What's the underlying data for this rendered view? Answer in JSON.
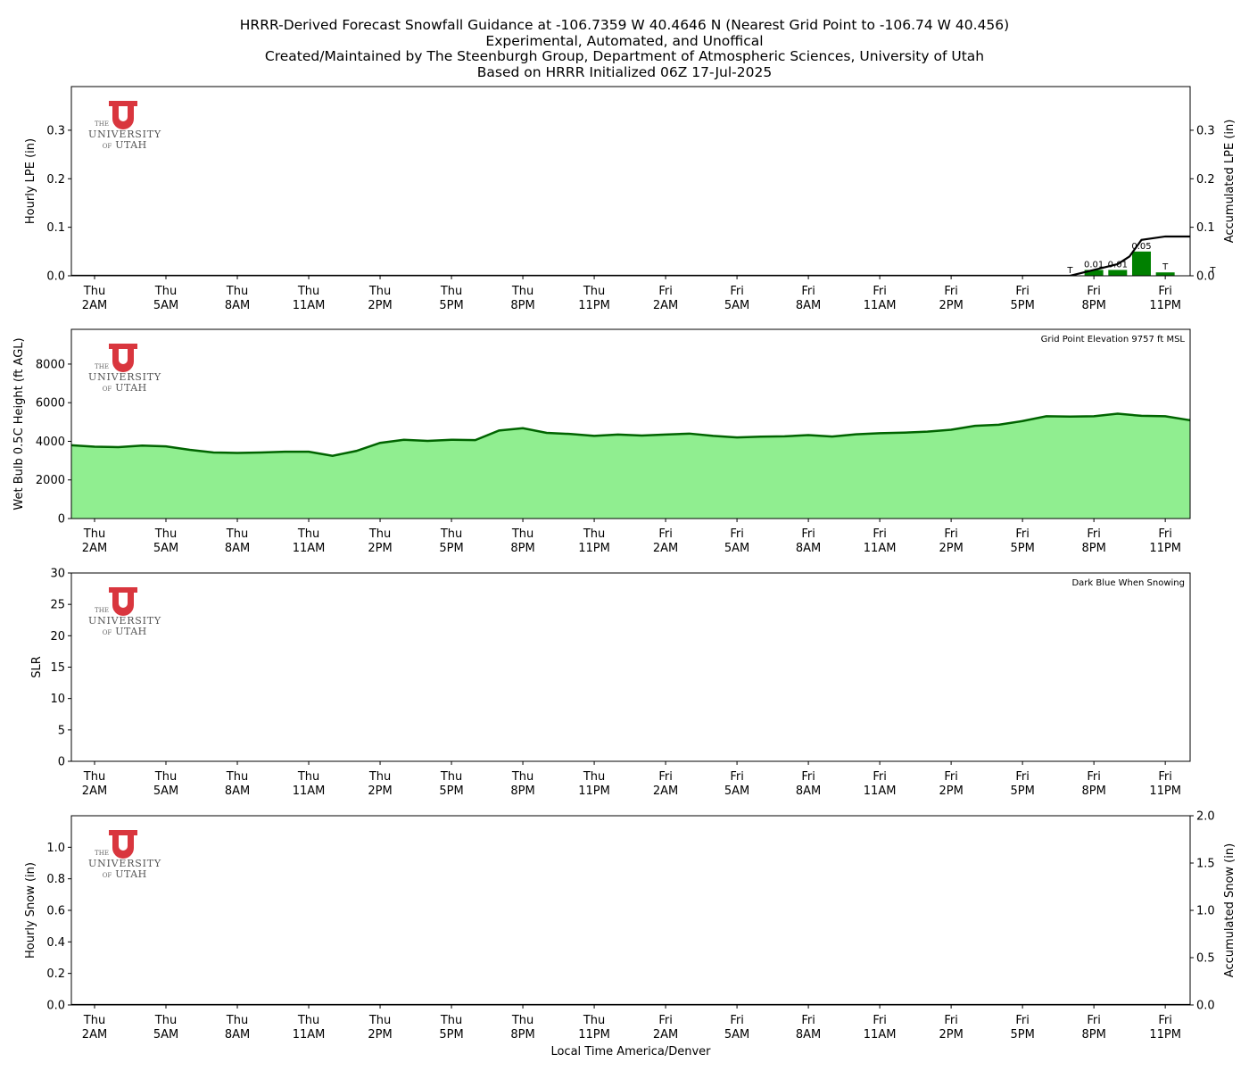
{
  "title": {
    "lines": [
      "HRRR-Derived Forecast Snowfall Guidance at -106.7359 W 40.4646 N (Nearest Grid Point to -106.74 W 40.456)",
      "Experimental, Automated, and Unoffical",
      "Created/Maintained by The Steenburgh Group, Department of Atmospheric Sciences, University of Utah",
      "Based on HRRR Initialized 06Z 17-Jul-2025"
    ]
  },
  "logo": {
    "the": "THE",
    "university": "UNIVERSITY",
    "of": "OF",
    "utah": "UTAH",
    "color": "#d9363e"
  },
  "xlabel": "Local Time America/Denver",
  "x_ticks": [
    [
      "Thu",
      "2AM"
    ],
    [
      "Thu",
      "5AM"
    ],
    [
      "Thu",
      "8AM"
    ],
    [
      "Thu",
      "11AM"
    ],
    [
      "Thu",
      "2PM"
    ],
    [
      "Thu",
      "5PM"
    ],
    [
      "Thu",
      "8PM"
    ],
    [
      "Thu",
      "11PM"
    ],
    [
      "Fri",
      "2AM"
    ],
    [
      "Fri",
      "5AM"
    ],
    [
      "Fri",
      "8AM"
    ],
    [
      "Fri",
      "11AM"
    ],
    [
      "Fri",
      "2PM"
    ],
    [
      "Fri",
      "5PM"
    ],
    [
      "Fri",
      "8PM"
    ],
    [
      "Fri",
      "11PM"
    ]
  ],
  "chart_data": [
    {
      "type": "bar",
      "ylabel": "Hourly LPE (in)",
      "y2label": "Accumulated LPE (in)",
      "ylim": [
        0,
        0.39
      ],
      "y2lim": [
        0,
        0.39
      ],
      "yticks": [
        0.0,
        0.1,
        0.2,
        0.3
      ],
      "y2ticks": [
        0.0,
        0.1,
        0.2,
        0.3
      ],
      "bar_color": "#008000",
      "line_color": "#000000",
      "hourly_bars": [
        {
          "hours_from_start": 41,
          "value": 0.0,
          "label": "T"
        },
        {
          "hours_from_start": 42,
          "value": 0.012,
          "label": "0.01"
        },
        {
          "hours_from_start": 43,
          "value": 0.012,
          "label": "0.01"
        },
        {
          "hours_from_start": 44,
          "value": 0.05,
          "label": "0.05"
        },
        {
          "hours_from_start": 45,
          "value": 0.007,
          "label": "T"
        },
        {
          "hours_from_start": 47,
          "value": 0.0,
          "label": "T"
        }
      ],
      "accumulated": {
        "hours_from_start": [
          -1,
          40,
          41,
          42,
          43,
          43.5,
          44,
          45,
          46,
          47
        ],
        "values": [
          0,
          0,
          0,
          0.012,
          0.024,
          0.04,
          0.074,
          0.081,
          0.081,
          0.082
        ]
      }
    },
    {
      "type": "area",
      "ylabel": "Wet Bulb 0.5C Height (ft AGL)",
      "annotation": "Grid Point Elevation 9757 ft MSL",
      "ylim": [
        0,
        9800
      ],
      "yticks": [
        0,
        2000,
        4000,
        6000,
        8000
      ],
      "fill_color": "#90ee90",
      "line_color": "#006400",
      "hours_from_start": [
        -1,
        0,
        1,
        2,
        3,
        4,
        5,
        6,
        7,
        8,
        9,
        10,
        11,
        12,
        13,
        14,
        15,
        16,
        17,
        18,
        19,
        20,
        21,
        22,
        23,
        24,
        25,
        26,
        27,
        28,
        29,
        30,
        31,
        32,
        33,
        34,
        35,
        36,
        37,
        38,
        39,
        40,
        41,
        42,
        43,
        44,
        45,
        46,
        47
      ],
      "values": [
        3800,
        3720,
        3700,
        3780,
        3740,
        3560,
        3420,
        3400,
        3420,
        3460,
        3460,
        3250,
        3500,
        3920,
        4080,
        4020,
        4080,
        4060,
        4560,
        4680,
        4440,
        4380,
        4280,
        4350,
        4300,
        4350,
        4400,
        4280,
        4200,
        4240,
        4260,
        4320,
        4250,
        4360,
        4420,
        4450,
        4500,
        4600,
        4800,
        4860,
        5050,
        5300,
        5280,
        5300,
        5430,
        5320,
        5300,
        5100,
        4950
      ]
    },
    {
      "type": "line",
      "ylabel": "SLR",
      "annotation": "Dark Blue When Snowing",
      "ylim": [
        0,
        30
      ],
      "yticks": [
        0,
        5,
        10,
        15,
        20,
        25,
        30
      ],
      "values": []
    },
    {
      "type": "bar",
      "ylabel": "Hourly Snow (in)",
      "y2label": "Accumulated Snow (in)",
      "ylim": [
        0,
        1.2
      ],
      "y2lim": [
        0,
        2.0
      ],
      "yticks": [
        0.0,
        0.2,
        0.4,
        0.6,
        0.8,
        1.0
      ],
      "y2ticks": [
        0.0,
        0.5,
        1.0,
        1.5,
        2.0
      ],
      "hourly_bars": [],
      "accumulated": {
        "hours_from_start": [
          -1,
          47
        ],
        "values": [
          0,
          0
        ]
      }
    }
  ]
}
